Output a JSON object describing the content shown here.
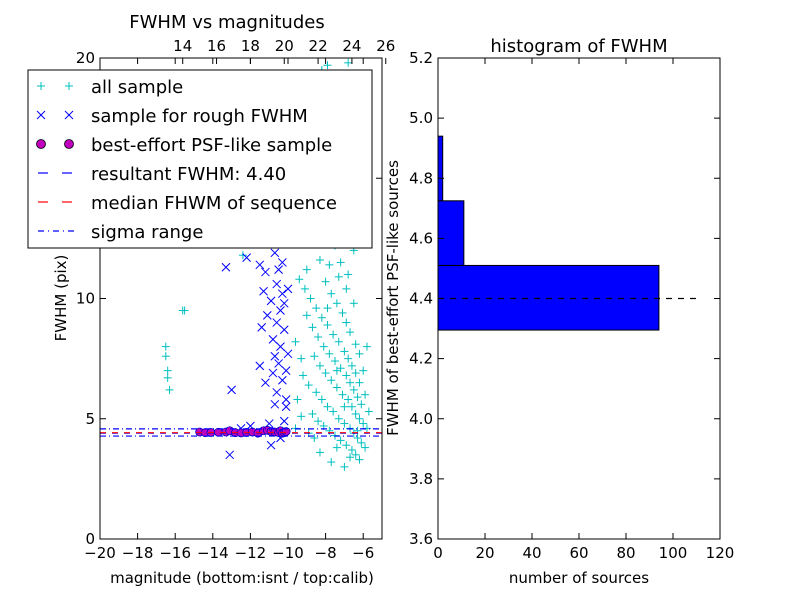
{
  "chart_data": [
    {
      "type": "scatter",
      "title": "FWHM vs magnitudes",
      "xlabel": "magnitude (bottom:isnt / top:calib)",
      "ylabel": "FWHM (pix)",
      "xlim": [
        -20,
        -5
      ],
      "ylim": [
        0,
        20
      ],
      "x_ticks": [
        "−20",
        "−18",
        "−16",
        "−14",
        "−12",
        "−10",
        "−8",
        "−6"
      ],
      "x_tick_values": [
        -20,
        -18,
        -16,
        -14,
        -12,
        -10,
        -8,
        -6
      ],
      "top_ticks": [
        "14",
        "16",
        "18",
        "20",
        "22",
        "24",
        "26"
      ],
      "top_tick_values": [
        -15.6,
        -13.8,
        -12.0,
        -10.2,
        -8.4,
        -6.6,
        -4.8
      ],
      "y_ticks": [
        "0",
        "5",
        "10",
        "15",
        "20"
      ],
      "y_tick_values": [
        0,
        5,
        10,
        15,
        20
      ],
      "legend_position": "upper-left",
      "series": [
        {
          "name": "all sample",
          "marker": "+",
          "color": "#00bfbf",
          "points": [
            [
              -15.5,
              9.5
            ],
            [
              -15.6,
              9.5
            ],
            [
              -16.5,
              8.0
            ],
            [
              -16.5,
              7.6
            ],
            [
              -16.4,
              7.0
            ],
            [
              -16.4,
              6.7
            ],
            [
              -16.3,
              6.2
            ],
            [
              -12.4,
              11.8
            ],
            [
              -13.5,
              12.5
            ],
            [
              -9.8,
              17.5
            ],
            [
              -9.5,
              16.2
            ],
            [
              -8.6,
              19.0
            ],
            [
              -9.9,
              19.2
            ],
            [
              -8.2,
              19.5
            ],
            [
              -7.9,
              19.7
            ],
            [
              -8.4,
              18.0
            ],
            [
              -8.0,
              16.5
            ],
            [
              -7.5,
              19.2
            ],
            [
              -7.4,
              18.5
            ],
            [
              -6.8,
              19.8
            ],
            [
              -6.5,
              18.2
            ],
            [
              -8.8,
              14.2
            ],
            [
              -8.5,
              13.5
            ],
            [
              -8.1,
              14.8
            ],
            [
              -7.8,
              13.0
            ],
            [
              -7.5,
              12.2
            ],
            [
              -7.2,
              11.5
            ],
            [
              -8.6,
              12.8
            ],
            [
              -8.3,
              11.6
            ],
            [
              -9.0,
              11.2
            ],
            [
              -7.6,
              15.5
            ],
            [
              -7.1,
              14.0
            ],
            [
              -6.7,
              13.2
            ],
            [
              -6.5,
              12.0
            ],
            [
              -9.4,
              10.8
            ],
            [
              -9.1,
              10.4
            ],
            [
              -8.8,
              10.0
            ],
            [
              -8.5,
              9.6
            ],
            [
              -8.2,
              9.2
            ],
            [
              -7.9,
              8.9
            ],
            [
              -7.6,
              8.5
            ],
            [
              -7.3,
              8.2
            ],
            [
              -7.0,
              7.8
            ],
            [
              -6.8,
              7.5
            ],
            [
              -6.6,
              7.2
            ],
            [
              -6.4,
              6.9
            ],
            [
              -6.2,
              6.5
            ],
            [
              -9.0,
              9.3
            ],
            [
              -8.7,
              8.8
            ],
            [
              -8.4,
              8.4
            ],
            [
              -8.1,
              8.0
            ],
            [
              -7.8,
              7.7
            ],
            [
              -7.5,
              7.4
            ],
            [
              -7.2,
              7.1
            ],
            [
              -6.9,
              6.8
            ],
            [
              -6.7,
              6.5
            ],
            [
              -6.5,
              6.2
            ],
            [
              -6.3,
              5.9
            ],
            [
              -6.1,
              5.6
            ],
            [
              -8.6,
              7.6
            ],
            [
              -8.3,
              7.2
            ],
            [
              -8.0,
              6.9
            ],
            [
              -7.7,
              6.6
            ],
            [
              -7.4,
              6.3
            ],
            [
              -7.1,
              6.0
            ],
            [
              -6.8,
              5.8
            ],
            [
              -6.6,
              5.5
            ],
            [
              -6.4,
              5.2
            ],
            [
              -6.2,
              5.0
            ],
            [
              -6.0,
              4.8
            ],
            [
              -5.8,
              4.6
            ],
            [
              -8.9,
              6.4
            ],
            [
              -8.5,
              6.1
            ],
            [
              -8.2,
              5.8
            ],
            [
              -7.9,
              5.5
            ],
            [
              -7.6,
              5.3
            ],
            [
              -7.3,
              5.0
            ],
            [
              -7.0,
              4.8
            ],
            [
              -6.7,
              4.6
            ],
            [
              -6.5,
              4.4
            ],
            [
              -6.3,
              4.2
            ],
            [
              -6.1,
              4.0
            ],
            [
              -5.9,
              3.8
            ],
            [
              -8.7,
              5.2
            ],
            [
              -8.4,
              4.9
            ],
            [
              -8.1,
              4.7
            ],
            [
              -7.8,
              4.5
            ],
            [
              -7.5,
              4.3
            ],
            [
              -7.2,
              4.1
            ],
            [
              -6.9,
              3.9
            ],
            [
              -6.6,
              3.7
            ],
            [
              -6.4,
              3.5
            ],
            [
              -6.2,
              3.3
            ],
            [
              -7.7,
              3.2
            ],
            [
              -7.0,
              3.0
            ],
            [
              -8.0,
              10.7
            ],
            [
              -7.7,
              10.2
            ],
            [
              -7.4,
              9.8
            ],
            [
              -7.1,
              9.4
            ],
            [
              -6.9,
              9.0
            ],
            [
              -6.7,
              8.6
            ],
            [
              -6.4,
              8.1
            ],
            [
              -6.2,
              7.7
            ],
            [
              -7.8,
              11.4
            ],
            [
              -7.3,
              10.9
            ],
            [
              -6.9,
              10.4
            ],
            [
              -6.5,
              9.8
            ],
            [
              -9.6,
              8.2
            ],
            [
              -9.3,
              7.5
            ],
            [
              -9.2,
              6.8
            ],
            [
              -9.5,
              5.8
            ],
            [
              -9.3,
              5.1
            ],
            [
              -9.6,
              4.6
            ],
            [
              -8.9,
              4.4
            ],
            [
              -8.6,
              4.2
            ],
            [
              -5.9,
              6.0
            ],
            [
              -5.7,
              5.3
            ],
            [
              -6.0,
              7.0
            ],
            [
              -5.8,
              8.0
            ],
            [
              -7.6,
              12.4
            ],
            [
              -7.2,
              12.8
            ],
            [
              -8.9,
              15.8
            ],
            [
              -9.2,
              13.9
            ],
            [
              -6.8,
              11.0
            ],
            [
              -7.9,
              9.6
            ],
            [
              -7.4,
              7.0
            ],
            [
              -7.0,
              5.5
            ],
            [
              -6.3,
              4.5
            ],
            [
              -8.3,
              3.6
            ],
            [
              -6.7,
              3.4
            ],
            [
              -7.4,
              3.8
            ]
          ]
        },
        {
          "name": "sample for rough FWHM",
          "marker": "x",
          "color": "#0000ff",
          "points": [
            [
              -13.3,
              11.3
            ],
            [
              -12.2,
              11.7
            ],
            [
              -11.5,
              11.4
            ],
            [
              -11.2,
              11.1
            ],
            [
              -10.7,
              11.9
            ],
            [
              -10.3,
              11.5
            ],
            [
              -10.6,
              10.6
            ],
            [
              -10.3,
              10.2
            ],
            [
              -10.9,
              9.9
            ],
            [
              -10.4,
              9.5
            ],
            [
              -11.1,
              9.3
            ],
            [
              -10.6,
              9.0
            ],
            [
              -10.2,
              8.7
            ],
            [
              -10.8,
              8.3
            ],
            [
              -10.4,
              8.0
            ],
            [
              -10.0,
              7.7
            ],
            [
              -10.5,
              7.3
            ],
            [
              -10.1,
              7.0
            ],
            [
              -11.5,
              7.2
            ],
            [
              -11.2,
              6.5
            ],
            [
              -10.6,
              6.1
            ],
            [
              -13.0,
              6.2
            ],
            [
              -13.1,
              3.5
            ],
            [
              -10.1,
              5.5
            ],
            [
              -11.0,
              4.8
            ],
            [
              -10.4,
              4.2
            ],
            [
              -10.9,
              3.9
            ],
            [
              -10.2,
              9.8
            ],
            [
              -10.7,
              7.6
            ],
            [
              -10.0,
              10.4
            ],
            [
              -11.4,
              8.8
            ],
            [
              -10.3,
              6.6
            ],
            [
              -12.5,
              4.6
            ],
            [
              -12.0,
              4.7
            ],
            [
              -10.2,
              4.9
            ],
            [
              -10.7,
              5.6
            ],
            [
              -11.3,
              10.3
            ],
            [
              -10.5,
              11.2
            ],
            [
              -10.1,
              5.8
            ],
            [
              -10.8,
              6.9
            ]
          ]
        },
        {
          "name": "best-effort PSF-like sample",
          "marker": "o",
          "color": "#bf00bf",
          "edge": "#0000cc",
          "points": [
            [
              -14.7,
              4.45
            ],
            [
              -14.4,
              4.42
            ],
            [
              -14.1,
              4.43
            ],
            [
              -13.7,
              4.44
            ],
            [
              -13.3,
              4.45
            ],
            [
              -13.1,
              4.5
            ],
            [
              -12.8,
              4.42
            ],
            [
              -12.5,
              4.41
            ],
            [
              -12.2,
              4.43
            ],
            [
              -11.9,
              4.45
            ],
            [
              -11.6,
              4.4
            ],
            [
              -11.3,
              4.5
            ],
            [
              -11.1,
              4.52
            ],
            [
              -10.9,
              4.47
            ],
            [
              -10.7,
              4.45
            ],
            [
              -10.5,
              4.43
            ],
            [
              -10.4,
              4.5
            ],
            [
              -10.3,
              4.4
            ],
            [
              -10.2,
              4.42
            ],
            [
              -10.1,
              4.47
            ]
          ]
        }
      ],
      "lines": [
        {
          "name": "resultant FWHM: 4.40",
          "value": 4.4,
          "style": "dashed",
          "color": "#0000ff"
        },
        {
          "name": "median FHWM of sequence",
          "value": 4.42,
          "style": "dashed",
          "color": "#ff0000"
        },
        {
          "name": "sigma range",
          "values": [
            4.28,
            4.58
          ],
          "style": "dashdot",
          "color": "#0000ff"
        }
      ],
      "legend": [
        {
          "label": "all sample",
          "marker": "+",
          "color": "#00bfbf"
        },
        {
          "label": "sample for rough FWHM",
          "marker": "x",
          "color": "#0000ff"
        },
        {
          "label": "best-effort PSF-like sample",
          "marker": "o",
          "color": "#bf00bf"
        },
        {
          "label": "resultant FWHM: 4.40",
          "marker": "dashed",
          "color": "#0000ff"
        },
        {
          "label": "median FHWM of sequence",
          "marker": "dashed",
          "color": "#ff0000"
        },
        {
          "label": "sigma range",
          "marker": "dashdot",
          "color": "#0000ff"
        }
      ]
    },
    {
      "type": "bar",
      "orientation": "horizontal",
      "title": "histogram of FWHM",
      "xlabel": "number of sources",
      "ylabel": "FWHM of best-effort PSF-like sources",
      "xlim": [
        0,
        120
      ],
      "ylim": [
        3.6,
        5.2
      ],
      "x_ticks": [
        "0",
        "20",
        "40",
        "60",
        "80",
        "100",
        "120"
      ],
      "x_tick_values": [
        0,
        20,
        40,
        60,
        80,
        100,
        120
      ],
      "y_ticks": [
        "3.6",
        "3.8",
        "4.0",
        "4.2",
        "4.4",
        "4.6",
        "4.8",
        "5.0",
        "5.2"
      ],
      "y_tick_values": [
        3.6,
        3.8,
        4.0,
        4.2,
        4.4,
        4.6,
        4.8,
        5.0,
        5.2
      ],
      "bars": [
        {
          "bin": [
            4.295,
            4.51
          ],
          "count": 94
        },
        {
          "bin": [
            4.51,
            4.725
          ],
          "count": 11
        },
        {
          "bin": [
            4.725,
            4.94
          ],
          "count": 2
        }
      ],
      "bar_color": "#0000ff",
      "reference_line": {
        "value": 4.4,
        "style": "dashed",
        "color": "#000000"
      }
    }
  ]
}
